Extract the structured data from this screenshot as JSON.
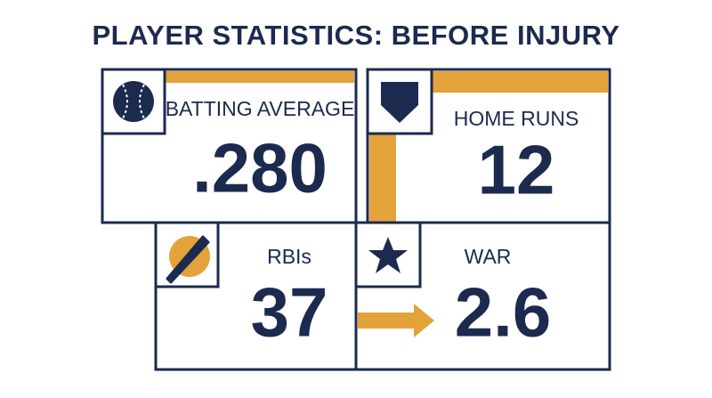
{
  "title": "PLAYER STATISTICS: BEFORE INJURY",
  "cards": [
    {
      "label": "BATTING AVERAGE",
      "value": ".280"
    },
    {
      "label": "HOME RUNS",
      "value": "12"
    },
    {
      "label": "RBIs",
      "value": "37"
    },
    {
      "label": "WAR",
      "value": "2.6"
    }
  ]
}
